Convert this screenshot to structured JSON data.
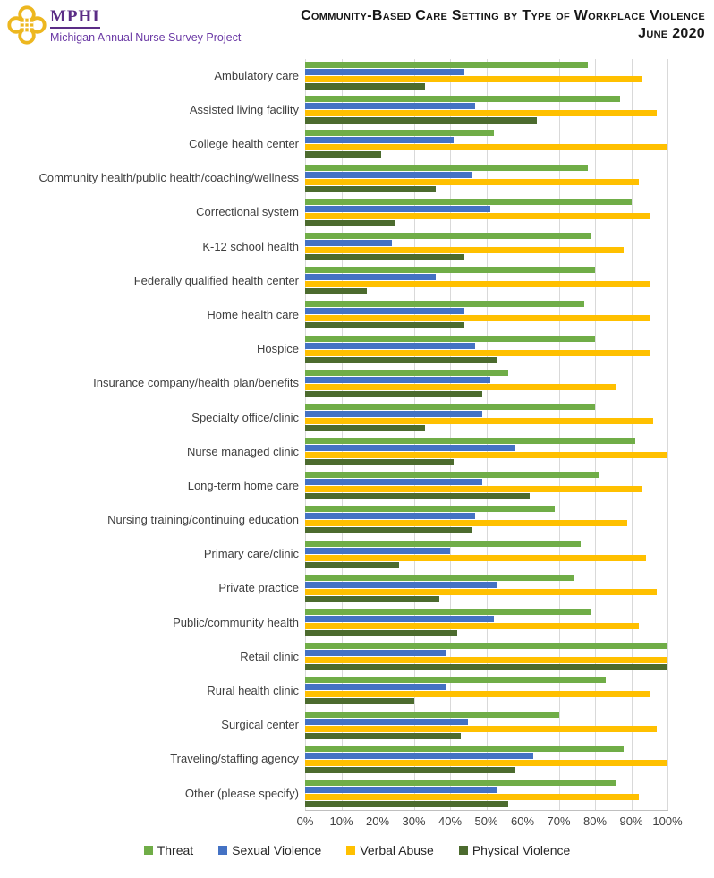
{
  "header": {
    "logo": {
      "acronym": "MPHI",
      "subtitle": "Michigan Annual Nurse Survey Project",
      "gold": "#EDB71F",
      "purple": "#5B2D86"
    },
    "title_line1": "Community-Based Care Setting by Type of Workplace Violence",
    "title_line2": "June 2020"
  },
  "chart_data": {
    "type": "bar",
    "orientation": "horizontal",
    "title": "Community-Based Care Setting by Type of Workplace Violence",
    "subtitle": "June 2020",
    "xlabel": "",
    "ylabel": "",
    "xlim": [
      0,
      100
    ],
    "grid": "vertical",
    "legend_position": "bottom",
    "x_ticks": [
      "0%",
      "10%",
      "20%",
      "30%",
      "40%",
      "50%",
      "60%",
      "70%",
      "80%",
      "90%",
      "100%"
    ],
    "categories": [
      "Ambulatory care",
      "Assisted living facility",
      "College health center",
      "Community health/public health/coaching/wellness",
      "Correctional system",
      "K-12 school health",
      "Federally qualified health center",
      "Home health care",
      "Hospice",
      "Insurance company/health plan/benefits",
      "Specialty office/clinic",
      "Nurse managed clinic",
      "Long-term home care",
      "Nursing training/continuing education",
      "Primary care/clinic",
      "Private practice",
      "Public/community health",
      "Retail clinic",
      "Rural health clinic",
      "Surgical center",
      "Traveling/staffing agency",
      "Other (please specify)"
    ],
    "series": [
      {
        "name": "Threat",
        "color": "#70AD47",
        "values": [
          78,
          87,
          52,
          78,
          90,
          79,
          80,
          77,
          80,
          56,
          80,
          91,
          81,
          69,
          76,
          74,
          79,
          100,
          83,
          70,
          88,
          86
        ]
      },
      {
        "name": "Sexual Violence",
        "color": "#4472C4",
        "values": [
          44,
          47,
          41,
          46,
          51,
          24,
          36,
          44,
          47,
          51,
          49,
          58,
          49,
          47,
          40,
          53,
          52,
          39,
          39,
          45,
          63,
          53
        ]
      },
      {
        "name": "Verbal Abuse",
        "color": "#FFC000",
        "values": [
          93,
          97,
          100,
          92,
          95,
          88,
          95,
          95,
          95,
          86,
          96,
          100,
          93,
          89,
          94,
          97,
          92,
          100,
          95,
          97,
          100,
          92
        ]
      },
      {
        "name": "Physical Violence",
        "color": "#4C6B2E",
        "values": [
          33,
          64,
          21,
          36,
          25,
          44,
          17,
          44,
          53,
          49,
          33,
          41,
          62,
          46,
          26,
          37,
          42,
          100,
          30,
          43,
          58,
          56
        ]
      }
    ]
  }
}
